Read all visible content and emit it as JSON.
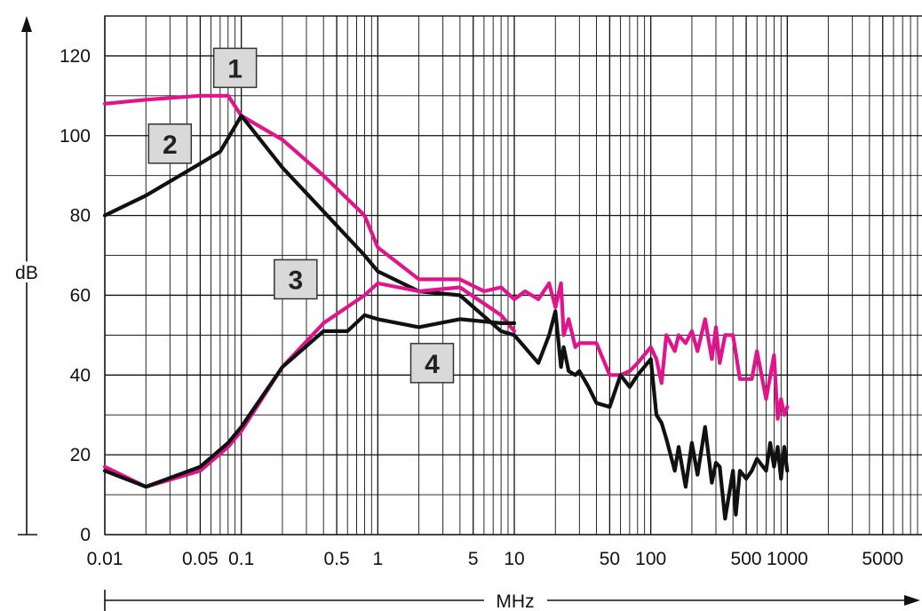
{
  "chart_data": {
    "type": "line",
    "title": "",
    "xlabel": "MHz",
    "ylabel": "dB",
    "xscale": "log",
    "xlim": [
      0.01,
      10000
    ],
    "ylim": [
      0,
      130
    ],
    "grid": true,
    "colors": {
      "magenta": "#e0148c",
      "black": "#111111"
    },
    "x_tick_labels": [
      "0.01",
      "0.05",
      "0.1",
      "0.5",
      "1",
      "5",
      "10",
      "50",
      "100",
      "500",
      "1000",
      "5000"
    ],
    "x_ticks": [
      0.01,
      0.05,
      0.1,
      0.5,
      1,
      5,
      10,
      50,
      100,
      500,
      1000,
      5000
    ],
    "y_ticks": [
      0,
      20,
      40,
      60,
      80,
      100,
      120
    ],
    "y_tick_labels": [
      "0",
      "20",
      "40",
      "60",
      "80",
      "100",
      "120"
    ],
    "curve_labels": [
      {
        "text": "1",
        "x": 0.09,
        "y": 117
      },
      {
        "text": "2",
        "x": 0.03,
        "y": 98
      },
      {
        "text": "3",
        "x": 0.25,
        "y": 64
      },
      {
        "text": "4",
        "x": 2.5,
        "y": 43
      }
    ],
    "series": [
      {
        "color": "magenta",
        "x": [
          0.01,
          0.02,
          0.05,
          0.08,
          0.1,
          0.2,
          0.4,
          0.8,
          1,
          2,
          4,
          6,
          8,
          10,
          12,
          15,
          18,
          20,
          22,
          23,
          25,
          28,
          30,
          35,
          40,
          50,
          60,
          70,
          80,
          100,
          110,
          120,
          130,
          150,
          160,
          180,
          200,
          220,
          250,
          280,
          300,
          320,
          350,
          400,
          450,
          500,
          550,
          600,
          700,
          800,
          850,
          900,
          950,
          1000
        ],
        "y": [
          108,
          109,
          110,
          110,
          105,
          99,
          90,
          80,
          72,
          64,
          64,
          61,
          62,
          59,
          61,
          59,
          63,
          57,
          63,
          50,
          54,
          47,
          48,
          48,
          48,
          40,
          40,
          41,
          43,
          47,
          44,
          38,
          50,
          46,
          50,
          48,
          51,
          46,
          54,
          44,
          52,
          43,
          50,
          50,
          39,
          39,
          39,
          46,
          34,
          45,
          29,
          34,
          30,
          32
        ]
      },
      {
        "color": "black",
        "x": [
          0.01,
          0.02,
          0.05,
          0.07,
          0.1,
          0.2,
          0.4,
          0.8,
          1,
          2,
          4,
          8,
          10,
          15,
          18,
          20,
          22,
          23,
          25,
          28,
          30,
          35,
          40,
          50,
          60,
          70,
          80,
          100,
          110,
          120,
          130,
          150,
          160,
          180,
          200,
          220,
          250,
          280,
          300,
          320,
          350,
          400,
          420,
          450,
          500,
          550,
          600,
          700,
          750,
          800,
          850,
          900,
          950,
          1000
        ],
        "y": [
          80,
          85,
          93,
          96,
          105,
          92,
          81,
          70,
          66,
          61,
          60,
          51,
          50,
          43,
          50,
          56,
          42,
          47,
          41,
          40,
          41,
          37,
          33,
          32,
          40,
          37,
          40,
          44,
          30,
          28,
          24,
          16,
          22,
          12,
          23,
          15,
          27,
          13,
          18,
          17,
          4,
          16,
          5,
          16,
          14,
          16,
          19,
          16,
          23,
          17,
          22,
          14,
          22,
          16
        ]
      },
      {
        "color": "magenta",
        "x": [
          0.01,
          0.02,
          0.05,
          0.08,
          0.1,
          0.2,
          0.4,
          0.8,
          1,
          2,
          4,
          8,
          10
        ],
        "y": [
          17,
          12,
          16,
          22,
          26,
          42,
          53,
          60,
          63,
          61,
          62,
          55,
          51
        ]
      },
      {
        "color": "black",
        "x": [
          0.01,
          0.02,
          0.05,
          0.08,
          0.1,
          0.2,
          0.4,
          0.6,
          0.8,
          1,
          2,
          4,
          8,
          10
        ],
        "y": [
          16,
          12,
          17,
          23,
          27,
          42,
          51,
          51,
          55,
          54,
          52,
          54,
          53,
          53
        ]
      }
    ]
  }
}
